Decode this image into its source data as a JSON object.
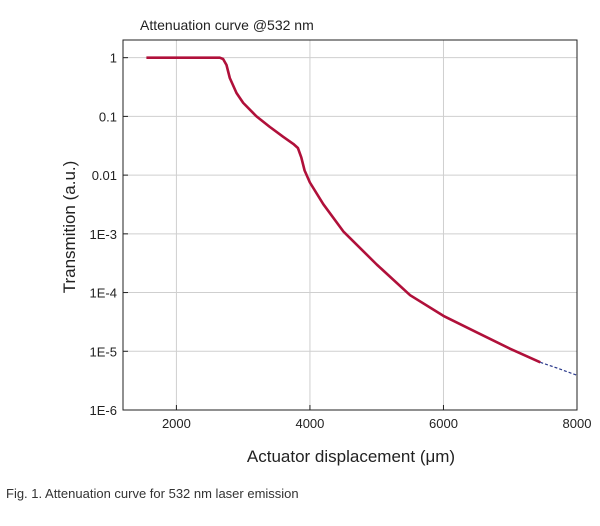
{
  "chart_data": {
    "type": "line",
    "title": "Attenuation curve @532 nm",
    "xlabel": "Actuator displacement (μm)",
    "ylabel": "Transmition (a.u.)",
    "xlim": [
      1200,
      8000
    ],
    "ylim": [
      1e-06,
      2
    ],
    "yscale": "log",
    "grid": true,
    "x_ticks": [
      2000,
      4000,
      6000,
      8000
    ],
    "x_tick_labels": [
      "2000",
      "4000",
      "6000",
      "8000"
    ],
    "y_ticks": [
      1,
      0.1,
      0.01,
      0.001,
      0.0001,
      1e-05,
      1e-06
    ],
    "y_tick_labels": [
      "1",
      "0.1",
      "0.01",
      "1E-3",
      "1E-4",
      "1E-5",
      "1E-6"
    ],
    "series": [
      {
        "style": "solid",
        "color": "#b0103a",
        "x": [
          1550,
          2000,
          2400,
          2650,
          2700,
          2750,
          2800,
          2900,
          3000,
          3200,
          3400,
          3600,
          3750,
          3820,
          3870,
          3920,
          4000,
          4200,
          4500,
          5000,
          5500,
          6000,
          6500,
          7000,
          7450
        ],
        "y": [
          1,
          1,
          1,
          1,
          0.95,
          0.75,
          0.45,
          0.25,
          0.17,
          0.1,
          0.066,
          0.045,
          0.034,
          0.029,
          0.02,
          0.012,
          0.0075,
          0.0032,
          0.0011,
          0.0003,
          9e-05,
          4e-05,
          2.1e-05,
          1.1e-05,
          6.5e-06
        ]
      },
      {
        "style": "dashed",
        "color": "#2b3a8c",
        "x": [
          7450,
          7700,
          8000
        ],
        "y": [
          6.5e-06,
          5.2e-06,
          3.9e-06
        ]
      }
    ]
  },
  "caption": "Fig. 1. Attenuation curve for 532 nm laser emission"
}
